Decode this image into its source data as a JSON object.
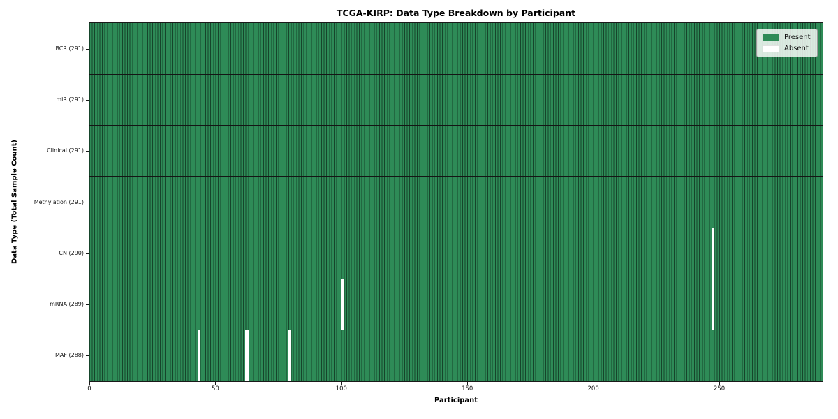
{
  "chart_data": {
    "type": "heatmap",
    "title": "TCGA-KIRP: Data Type Breakdown by Participant",
    "xlabel": "Participant",
    "ylabel": "Data Type (Total Sample Count)",
    "xlim": [
      0,
      291
    ],
    "x_ticks": [
      0,
      50,
      100,
      150,
      200,
      250
    ],
    "n_participants": 291,
    "grid": false,
    "legend_position": "upper right",
    "legend": [
      {
        "name": "present",
        "label": "Present",
        "color": "#2e8b57"
      },
      {
        "name": "absent",
        "label": "Absent",
        "color": "#ffffff"
      }
    ],
    "rows": [
      {
        "label": "BCR (291)",
        "data_type": "BCR",
        "present_count": 291,
        "absent_participants": []
      },
      {
        "label": "miR (291)",
        "data_type": "miR",
        "present_count": 291,
        "absent_participants": []
      },
      {
        "label": "Clinical (291)",
        "data_type": "Clinical",
        "present_count": 291,
        "absent_participants": []
      },
      {
        "label": "Methylation (291)",
        "data_type": "Methylation",
        "present_count": 291,
        "absent_participants": []
      },
      {
        "label": "CN (290)",
        "data_type": "CN",
        "present_count": 290,
        "absent_participants": [
          247
        ]
      },
      {
        "label": "mRNA (289)",
        "data_type": "mRNA",
        "present_count": 289,
        "absent_participants": [
          100,
          247
        ]
      },
      {
        "label": "MAF (288)",
        "data_type": "MAF",
        "present_count": 288,
        "absent_participants": [
          43,
          62,
          79
        ]
      }
    ],
    "colors": {
      "present": "#2e8b57",
      "bar_edge": "#16452b",
      "row_divider": "#151515",
      "absent": "#ffffff",
      "legend_border": "#9a9a9a"
    }
  }
}
